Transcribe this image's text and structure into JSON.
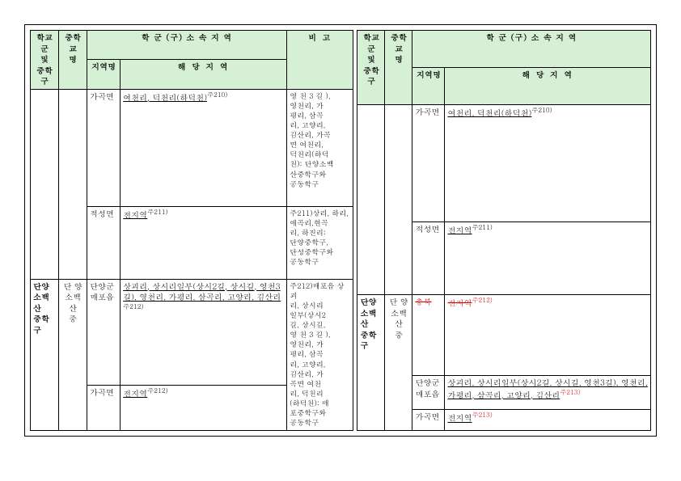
{
  "headers": {
    "school_group": "학교군\n및\n중학구",
    "school_name": "중학교\n명",
    "belong": "학 군 (구)   소 속 지 역",
    "region_name": "지역명",
    "region_detail": "해   당   지   역",
    "remark": "비   고"
  },
  "left": {
    "block1": {
      "region1": "가곡면",
      "detail1_u": "여천리, 덕천리(하덕천)",
      "detail1_sup": "주210)",
      "region2": "적성면",
      "detail2_u": "전지역",
      "detail2_sup": "주211)",
      "remark1": "영 천 3 길 ),\n영천리, 가\n평리, 삼곡\n리, 고양리,\n김산리, 가곡\n면  여천리,\n덕천리(하덕\n천): 단양소백\n산중학구와\n공동학구",
      "remark2": "주211)상리, 하리,\n애곡리,현곡\n리, 하진리:\n단양중학구,\n단성중학구와\n공동학구"
    },
    "block2": {
      "group": "단양\n소백산\n중학구",
      "school": "단 양\n소백산\n중",
      "region1": "단양군\n매포읍",
      "detail1_u": "상괴리, 상시리일부(상시2길, 상시길, 영천3길), 영천리, 가평리, 삼곡리, 고양리, 김산리",
      "detail1_sup": "주212)",
      "region2": "가곡면",
      "detail2_u": "전지역",
      "detail2_sup": "주212)",
      "remark": "주212)매포읍 상괴\n리, 상시리\n일부(상시2\n길, 상시길,\n영 천 3 길 ),\n영천리, 가\n평리, 삼곡\n리, 고양리,\n김산리, 가\n곡면 여천\n리, 덕천리\n(하덕천): 매\n포중학구와\n공동학구"
    }
  },
  "right": {
    "block1": {
      "region1": "가곡면",
      "detail1_u": "여천리, 덕천리(하덕천)",
      "detail1_sup": "주210)",
      "region2": "적성면",
      "detail2_u": "전지역",
      "detail2_sup": "주211)"
    },
    "block2": {
      "group": "단양\n소백산\n중학구",
      "school": "단 양\n소백산\n중",
      "region1": "충북",
      "detail1_u": "전지역",
      "detail1_sup": "주212)",
      "region2": "단양군\n매포읍",
      "detail2_u": "상괴리, 상시리일부(상시2길, 상시길, 영천3길), 영천리, 가평리, 삼곡리, 고양리, 김산리",
      "detail2_sup": "주213)",
      "region3": "가곡면",
      "detail3_u": "전지역",
      "detail3_sup": "주213)"
    }
  }
}
